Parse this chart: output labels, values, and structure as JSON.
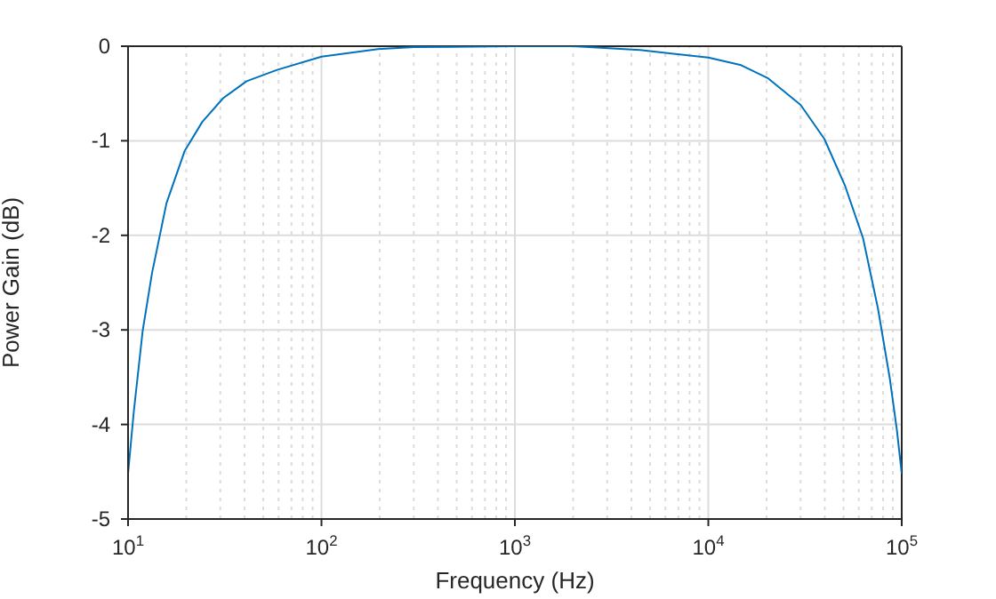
{
  "chart_data": {
    "type": "line",
    "xlabel": "Frequency (Hz)",
    "ylabel": "Power Gain (dB)",
    "x": [
      10,
      10.7,
      11.9,
      13.3,
      15.8,
      19.6,
      24.2,
      31,
      41,
      59,
      100,
      196,
      300,
      1000,
      2000,
      4430,
      10000,
      14770,
      20400,
      30000,
      39800,
      51000,
      63100,
      75300,
      86700,
      94400,
      100000
    ],
    "series": [
      {
        "color": "#0072bd",
        "values": [
          -4.52,
          -3.87,
          -3.01,
          -2.4,
          -1.66,
          -1.11,
          -0.8,
          -0.55,
          -0.37,
          -0.25,
          -0.11,
          -0.03,
          -0.01,
          0,
          0,
          -0.04,
          -0.12,
          -0.2,
          -0.34,
          -0.62,
          -0.98,
          -1.48,
          -2.03,
          -2.77,
          -3.51,
          -4.06,
          -4.52
        ]
      }
    ],
    "log": "x",
    "xlim": [
      10,
      100000
    ],
    "xticks": [
      {
        "value": 10,
        "label": "10$^{1}$"
      },
      {
        "value": 100,
        "label": "10$^{2}$"
      },
      {
        "value": 1000,
        "label": "10$^{3}$"
      },
      {
        "value": 10000,
        "label": "10$^{4}$"
      },
      {
        "value": 100000,
        "label": "10$^{5}$"
      }
    ],
    "ylim": [
      -5,
      0
    ],
    "yticks": [
      -5,
      -4,
      -3,
      -2,
      -1,
      0
    ],
    "grid": true,
    "line_style": "solid",
    "marker": "none"
  }
}
